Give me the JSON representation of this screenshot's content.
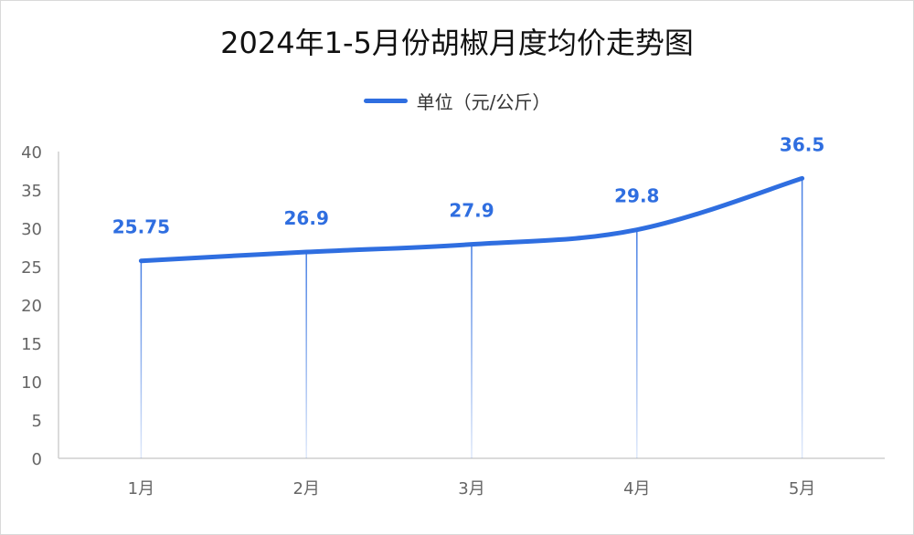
{
  "chart_data": {
    "type": "line",
    "title": "2024年1-5月份胡椒月度均价走势图",
    "categories": [
      "1月",
      "2月",
      "3月",
      "4月",
      "5月"
    ],
    "series": [
      {
        "name": "单位（元/公斤）",
        "values": [
          25.75,
          26.9,
          27.9,
          29.8,
          36.5
        ],
        "labels": [
          "25.75",
          "26.9",
          "27.9",
          "29.8",
          "36.5"
        ]
      }
    ],
    "ylim": [
      0,
      40
    ],
    "yticks": [
      0,
      5,
      10,
      15,
      20,
      25,
      30,
      35,
      40
    ],
    "legend_position": "top-center",
    "grid": false,
    "drop_lines": true
  },
  "colors": {
    "series": "#2f6ee0",
    "axis": "#cfcfcf"
  }
}
